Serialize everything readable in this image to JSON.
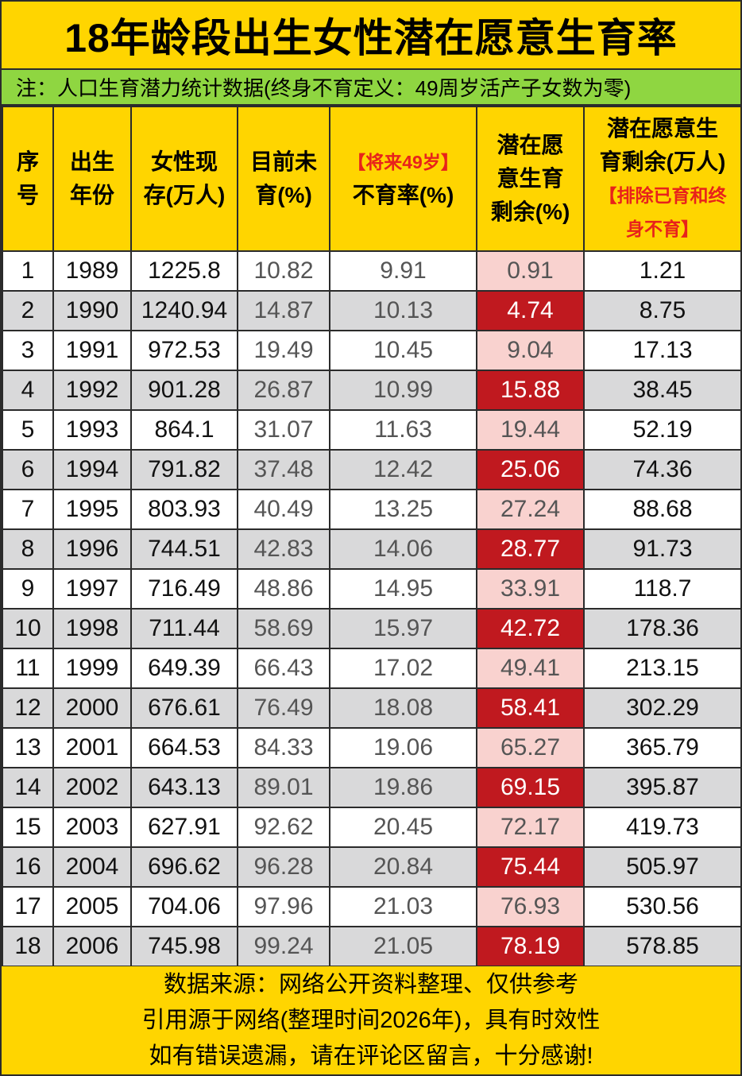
{
  "title": "18年龄段出生女性潜在愿意生育率",
  "note": "注：人口生育潜力统计数据(终身不育定义：49周岁活产子女数为零)",
  "colors": {
    "title_bg": "#FFD500",
    "note_bg": "#8FD641",
    "header_bg": "#FFD500",
    "highlight_dark": "#C0191F",
    "highlight_light": "#F9D2CF",
    "row_alt": "#D9D9DA",
    "red_text": "#E8221B"
  },
  "headers": {
    "c0": {
      "l1": "序",
      "l2": "号"
    },
    "c1": {
      "l1": "出生",
      "l2": "年份"
    },
    "c2": {
      "l1": "女性现",
      "l2": "存(万人)"
    },
    "c3": {
      "l1": "目前未",
      "l2": "育(%)"
    },
    "c4": {
      "red": "【将来49岁】",
      "l2": "不育率(%)"
    },
    "c5": {
      "l1": "潜在愿",
      "l2": "意生育",
      "l3": "剩余(%)"
    },
    "c6": {
      "l1": "潜在愿意生",
      "l2": "育剩余(万人)",
      "red1": "【排除已育和终",
      "red2": "身不育】"
    }
  },
  "rows": [
    {
      "idx": "1",
      "year": "1989",
      "pop": "1225.8",
      "unborn": "10.82",
      "infertile": "9.91",
      "pct": "0.91",
      "remain": "1.21"
    },
    {
      "idx": "2",
      "year": "1990",
      "pop": "1240.94",
      "unborn": "14.87",
      "infertile": "10.13",
      "pct": "4.74",
      "remain": "8.75"
    },
    {
      "idx": "3",
      "year": "1991",
      "pop": "972.53",
      "unborn": "19.49",
      "infertile": "10.45",
      "pct": "9.04",
      "remain": "17.13"
    },
    {
      "idx": "4",
      "year": "1992",
      "pop": "901.28",
      "unborn": "26.87",
      "infertile": "10.99",
      "pct": "15.88",
      "remain": "38.45"
    },
    {
      "idx": "5",
      "year": "1993",
      "pop": "864.1",
      "unborn": "31.07",
      "infertile": "11.63",
      "pct": "19.44",
      "remain": "52.19"
    },
    {
      "idx": "6",
      "year": "1994",
      "pop": "791.82",
      "unborn": "37.48",
      "infertile": "12.42",
      "pct": "25.06",
      "remain": "74.36"
    },
    {
      "idx": "7",
      "year": "1995",
      "pop": "803.93",
      "unborn": "40.49",
      "infertile": "13.25",
      "pct": "27.24",
      "remain": "88.68"
    },
    {
      "idx": "8",
      "year": "1996",
      "pop": "744.51",
      "unborn": "42.83",
      "infertile": "14.06",
      "pct": "28.77",
      "remain": "91.73"
    },
    {
      "idx": "9",
      "year": "1997",
      "pop": "716.49",
      "unborn": "48.86",
      "infertile": "14.95",
      "pct": "33.91",
      "remain": "118.7"
    },
    {
      "idx": "10",
      "year": "1998",
      "pop": "711.44",
      "unborn": "58.69",
      "infertile": "15.97",
      "pct": "42.72",
      "remain": "178.36"
    },
    {
      "idx": "11",
      "year": "1999",
      "pop": "649.39",
      "unborn": "66.43",
      "infertile": "17.02",
      "pct": "49.41",
      "remain": "213.15"
    },
    {
      "idx": "12",
      "year": "2000",
      "pop": "676.61",
      "unborn": "76.49",
      "infertile": "18.08",
      "pct": "58.41",
      "remain": "302.29"
    },
    {
      "idx": "13",
      "year": "2001",
      "pop": "664.53",
      "unborn": "84.33",
      "infertile": "19.06",
      "pct": "65.27",
      "remain": "365.79"
    },
    {
      "idx": "14",
      "year": "2002",
      "pop": "643.13",
      "unborn": "89.01",
      "infertile": "19.86",
      "pct": "69.15",
      "remain": "395.87"
    },
    {
      "idx": "15",
      "year": "2003",
      "pop": "627.91",
      "unborn": "92.62",
      "infertile": "20.45",
      "pct": "72.17",
      "remain": "419.73"
    },
    {
      "idx": "16",
      "year": "2004",
      "pop": "696.62",
      "unborn": "96.28",
      "infertile": "20.84",
      "pct": "75.44",
      "remain": "505.97"
    },
    {
      "idx": "17",
      "year": "2005",
      "pop": "704.06",
      "unborn": "97.96",
      "infertile": "21.03",
      "pct": "76.93",
      "remain": "530.56"
    },
    {
      "idx": "18",
      "year": "2006",
      "pop": "745.98",
      "unborn": "99.24",
      "infertile": "21.05",
      "pct": "78.19",
      "remain": "578.85"
    }
  ],
  "footer": {
    "line1": "数据来源：网络公开资料整理、仅供参考",
    "line2": "引用源于网络(整理时间2026年)，具有时效性",
    "line3": "如有错误遗漏，请在评论区留言，十分感谢!"
  }
}
